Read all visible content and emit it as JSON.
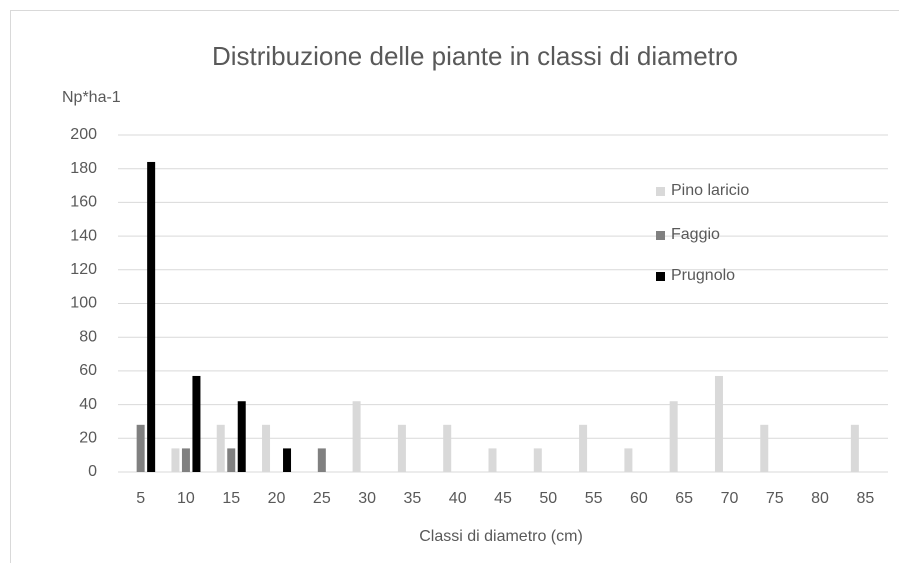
{
  "chart_data": {
    "type": "bar",
    "title": "Distribuzione delle piante in classi di diametro",
    "y_label": "Np*ha-1",
    "x_label": "Classi di diametro (cm)",
    "categories": [
      "5",
      "10",
      "15",
      "20",
      "25",
      "30",
      "35",
      "40",
      "45",
      "50",
      "55",
      "60",
      "65",
      "70",
      "75",
      "80",
      "85"
    ],
    "series": [
      {
        "name": "Pino laricio",
        "color": "#d9d9d9",
        "values": [
          0,
          14,
          28,
          28,
          0,
          42,
          28,
          28,
          14,
          14,
          28,
          14,
          42,
          57,
          28,
          0,
          28
        ]
      },
      {
        "name": "Faggio",
        "color": "#808080",
        "values": [
          28,
          14,
          14,
          0,
          14,
          0,
          0,
          0,
          0,
          0,
          0,
          0,
          0,
          0,
          0,
          0,
          0
        ]
      },
      {
        "name": "Prugnolo",
        "color": "#000000",
        "values": [
          184,
          57,
          42,
          14,
          0,
          0,
          0,
          0,
          0,
          0,
          0,
          0,
          0,
          0,
          0,
          0,
          0
        ]
      }
    ],
    "ylim": [
      0,
      200
    ],
    "yticks": [
      0,
      20,
      40,
      60,
      80,
      100,
      120,
      140,
      160,
      180,
      200
    ],
    "grid": true,
    "legend": "right"
  }
}
